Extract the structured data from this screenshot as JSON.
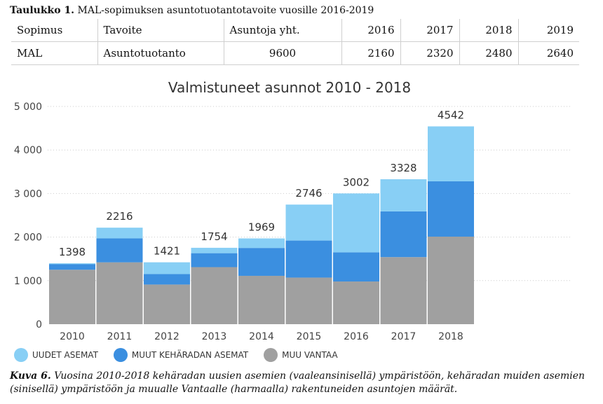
{
  "table_caption": {
    "label": "Taulukko 1.",
    "text": "MAL-sopimuksen asuntotuotantotavoite vuosille 2016-2019"
  },
  "table": {
    "headers": [
      "Sopimus",
      "Tavoite",
      "Asuntoja yht.",
      "2016",
      "2017",
      "2018",
      "2019"
    ],
    "rows": [
      [
        "MAL",
        "Asuntotuotanto",
        "9600",
        "2160",
        "2320",
        "2480",
        "2640"
      ]
    ]
  },
  "chart_data": {
    "type": "bar",
    "stacked": true,
    "title": "Valmistuneet asunnot 2010 - 2018",
    "categories": [
      "2010",
      "2011",
      "2012",
      "2013",
      "2014",
      "2015",
      "2016",
      "2017",
      "2018"
    ],
    "series": [
      {
        "name": "MUU VANTAA",
        "color": "#a0a0a0",
        "values": [
          1250,
          1420,
          910,
          1310,
          1110,
          1070,
          980,
          1540,
          2010
        ]
      },
      {
        "name": "MUUT KEHÄRADAN ASEMAT",
        "color": "#3b8fe0",
        "values": [
          130,
          550,
          240,
          320,
          640,
          850,
          670,
          1050,
          1270
        ]
      },
      {
        "name": "UUDET ASEMAT",
        "color": "#88cff5",
        "values": [
          18,
          246,
          271,
          124,
          219,
          826,
          1352,
          738,
          1262
        ]
      }
    ],
    "totals": [
      "1398",
      "2216",
      "1421",
      "1754",
      "1969",
      "2746",
      "3002",
      "3328",
      "4542"
    ],
    "ylim": [
      0,
      5000
    ],
    "yticks": [
      0,
      1000,
      2000,
      3000,
      4000,
      5000
    ],
    "ytick_labels": [
      "0",
      "1 000",
      "2 000",
      "3 000",
      "4 000",
      "5 000"
    ],
    "grid": true,
    "legend_position": "bottom-left",
    "xlabel": "",
    "ylabel": ""
  },
  "legend": {
    "items": [
      {
        "label": "UUDET ASEMAT",
        "color": "#88cff5"
      },
      {
        "label": "MUUT KEHÄRADAN ASEMAT",
        "color": "#3b8fe0"
      },
      {
        "label": "MUU VANTAA",
        "color": "#a0a0a0"
      }
    ]
  },
  "figure_caption": {
    "label": "Kuva 6.",
    "text": "Vuosina 2010-2018 kehäradan uusien asemien (vaaleansinisellä) ympäristöön, kehäradan muiden asemien (sinisellä) ympäristöön ja muualle Vantaalle (harmaalla) rakentuneiden asuntojen määrät."
  }
}
